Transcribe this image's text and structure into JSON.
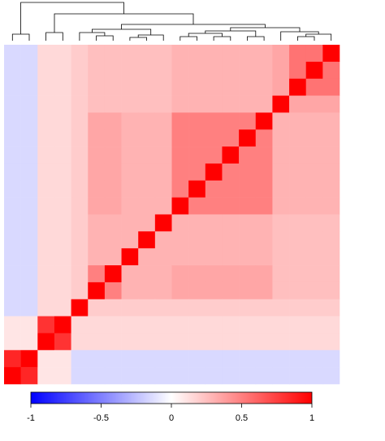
{
  "chart_data": {
    "type": "heatmap",
    "colorscale": [
      "#0000ff",
      "#ffffff",
      "#ff0000"
    ],
    "zlim": [
      -1,
      1
    ],
    "zticks": [
      -1,
      -0.5,
      0,
      0.5,
      1
    ],
    "values": [
      [
        -0.15,
        -0.15,
        0.15,
        0.15,
        0.2,
        0.25,
        0.25,
        0.25,
        0.25,
        0.25,
        0.3,
        0.3,
        0.3,
        0.3,
        0.3,
        0.3,
        0.35,
        0.55,
        0.55,
        1
      ],
      [
        -0.15,
        -0.15,
        0.15,
        0.15,
        0.2,
        0.25,
        0.25,
        0.25,
        0.25,
        0.25,
        0.3,
        0.3,
        0.3,
        0.3,
        0.3,
        0.3,
        0.35,
        0.55,
        1,
        0.55
      ],
      [
        -0.15,
        -0.15,
        0.15,
        0.15,
        0.2,
        0.25,
        0.25,
        0.25,
        0.25,
        0.25,
        0.3,
        0.3,
        0.3,
        0.3,
        0.3,
        0.3,
        0.35,
        1,
        0.55,
        0.55
      ],
      [
        -0.15,
        -0.15,
        0.15,
        0.15,
        0.2,
        0.25,
        0.25,
        0.25,
        0.25,
        0.25,
        0.3,
        0.3,
        0.3,
        0.3,
        0.3,
        0.3,
        1,
        0.35,
        0.35,
        0.35
      ],
      [
        -0.15,
        -0.15,
        0.15,
        0.15,
        0.2,
        0.35,
        0.35,
        0.3,
        0.3,
        0.3,
        0.5,
        0.5,
        0.5,
        0.5,
        0.5,
        1,
        0.3,
        0.3,
        0.3,
        0.3
      ],
      [
        -0.15,
        -0.15,
        0.15,
        0.15,
        0.2,
        0.35,
        0.35,
        0.3,
        0.3,
        0.3,
        0.5,
        0.5,
        0.5,
        0.5,
        1,
        0.5,
        0.3,
        0.3,
        0.3,
        0.3
      ],
      [
        -0.15,
        -0.15,
        0.15,
        0.15,
        0.2,
        0.35,
        0.35,
        0.3,
        0.3,
        0.3,
        0.5,
        0.5,
        0.5,
        1,
        0.5,
        0.5,
        0.3,
        0.3,
        0.3,
        0.3
      ],
      [
        -0.15,
        -0.15,
        0.15,
        0.15,
        0.2,
        0.35,
        0.35,
        0.3,
        0.3,
        0.3,
        0.5,
        0.5,
        1,
        0.5,
        0.5,
        0.5,
        0.3,
        0.3,
        0.3,
        0.3
      ],
      [
        -0.15,
        -0.15,
        0.15,
        0.15,
        0.2,
        0.35,
        0.35,
        0.3,
        0.3,
        0.3,
        0.5,
        1,
        0.5,
        0.5,
        0.5,
        0.5,
        0.3,
        0.3,
        0.3,
        0.3
      ],
      [
        -0.15,
        -0.15,
        0.15,
        0.15,
        0.2,
        0.35,
        0.35,
        0.3,
        0.3,
        0.3,
        1,
        0.5,
        0.5,
        0.5,
        0.5,
        0.5,
        0.3,
        0.3,
        0.3,
        0.3
      ],
      [
        -0.15,
        -0.15,
        0.15,
        0.15,
        0.2,
        0.3,
        0.3,
        0.3,
        0.3,
        1,
        0.3,
        0.3,
        0.3,
        0.3,
        0.3,
        0.3,
        0.25,
        0.25,
        0.25,
        0.25
      ],
      [
        -0.15,
        -0.15,
        0.15,
        0.15,
        0.2,
        0.3,
        0.3,
        0.3,
        1,
        0.3,
        0.3,
        0.3,
        0.3,
        0.3,
        0.3,
        0.3,
        0.25,
        0.25,
        0.25,
        0.25
      ],
      [
        -0.15,
        -0.15,
        0.15,
        0.15,
        0.2,
        0.3,
        0.3,
        1,
        0.3,
        0.3,
        0.3,
        0.3,
        0.3,
        0.3,
        0.3,
        0.3,
        0.25,
        0.25,
        0.25,
        0.25
      ],
      [
        -0.15,
        -0.15,
        0.15,
        0.15,
        0.2,
        0.5,
        1,
        0.3,
        0.3,
        0.3,
        0.35,
        0.35,
        0.35,
        0.35,
        0.35,
        0.35,
        0.25,
        0.25,
        0.25,
        0.25
      ],
      [
        -0.15,
        -0.15,
        0.15,
        0.15,
        0.2,
        1,
        0.5,
        0.3,
        0.3,
        0.3,
        0.35,
        0.35,
        0.35,
        0.35,
        0.35,
        0.35,
        0.25,
        0.25,
        0.25,
        0.25
      ],
      [
        -0.15,
        -0.15,
        0.15,
        0.15,
        1,
        0.2,
        0.2,
        0.2,
        0.2,
        0.2,
        0.2,
        0.2,
        0.2,
        0.2,
        0.2,
        0.2,
        0.2,
        0.2,
        0.2,
        0.2
      ],
      [
        0.1,
        0.1,
        0.8,
        1,
        0.15,
        0.15,
        0.15,
        0.15,
        0.15,
        0.15,
        0.15,
        0.15,
        0.15,
        0.15,
        0.15,
        0.15,
        0.15,
        0.15,
        0.15,
        0.15
      ],
      [
        0.1,
        0.1,
        1,
        0.8,
        0.15,
        0.15,
        0.15,
        0.15,
        0.15,
        0.15,
        0.15,
        0.15,
        0.15,
        0.15,
        0.15,
        0.15,
        0.15,
        0.15,
        0.15,
        0.15
      ],
      [
        0.85,
        1,
        0.1,
        0.1,
        -0.15,
        -0.15,
        -0.15,
        -0.15,
        -0.15,
        -0.15,
        -0.15,
        -0.15,
        -0.15,
        -0.15,
        -0.15,
        -0.15,
        -0.15,
        -0.15,
        -0.15,
        -0.15
      ],
      [
        1,
        0.85,
        0.1,
        0.1,
        -0.15,
        -0.15,
        -0.15,
        -0.15,
        -0.15,
        -0.15,
        -0.15,
        -0.15,
        -0.15,
        -0.15,
        -0.15,
        -0.15,
        -0.15,
        -0.15,
        -0.15,
        -0.15
      ]
    ]
  }
}
